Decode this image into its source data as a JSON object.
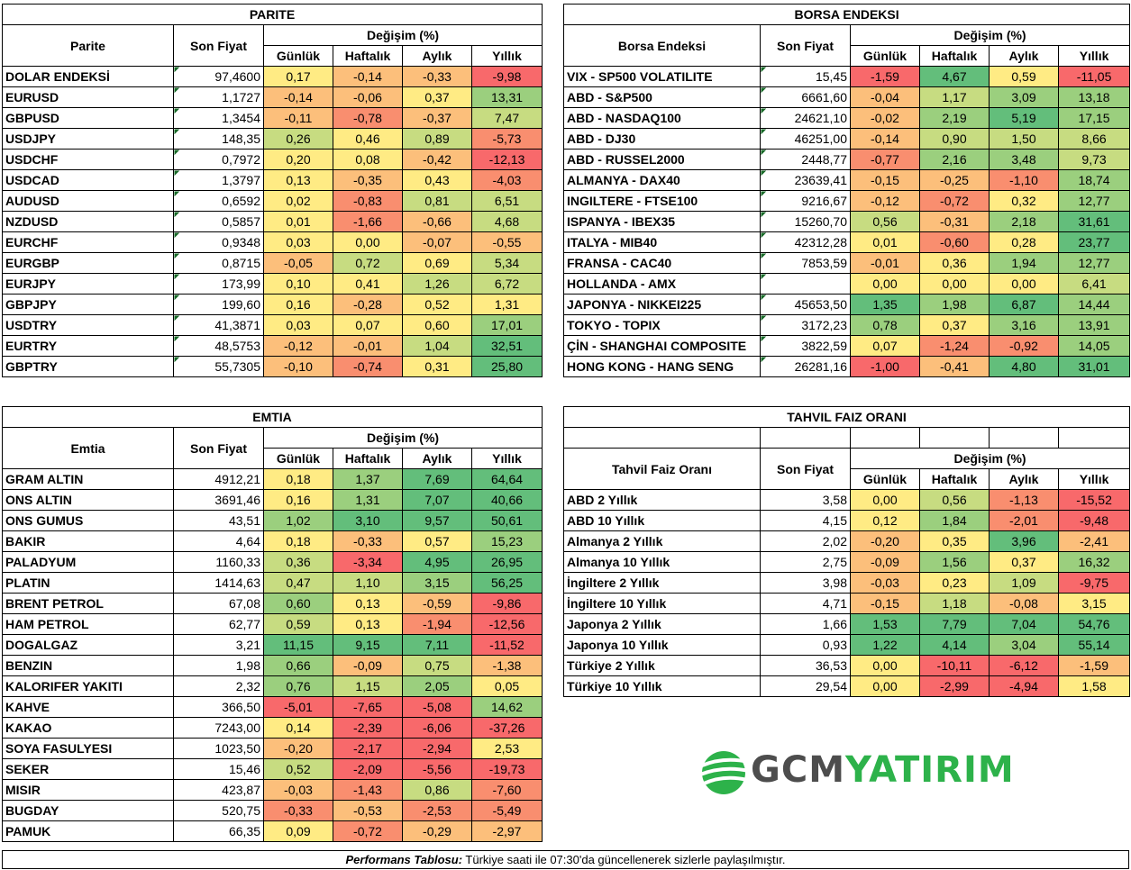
{
  "colors": {
    "deep_red": "#f8696b",
    "red": "#f98e6f",
    "orange": "#fcbf7b",
    "yellow": "#ffeb84",
    "lightgreen": "#c7dc81",
    "green": "#9bcf7e",
    "deep_green": "#63be7b"
  },
  "headers": {
    "change": "Değişim (%)",
    "daily": "Günlük",
    "weekly": "Haftalık",
    "monthly": "Aylık",
    "yearly": "Yıllık",
    "price": "Son Fiyat"
  },
  "parite": {
    "title": "PARITE",
    "col_name": "Parite",
    "rows": [
      {
        "name": "DOLAR ENDEKSİ",
        "price": "97,4600",
        "d": "0,17",
        "w": "-0,14",
        "m": "-0,33",
        "y": "-9,98"
      },
      {
        "name": "EURUSD",
        "price": "1,1727",
        "d": "-0,14",
        "w": "-0,06",
        "m": "0,37",
        "y": "13,31"
      },
      {
        "name": "GBPUSD",
        "price": "1,3454",
        "d": "-0,11",
        "w": "-0,78",
        "m": "-0,37",
        "y": "7,47"
      },
      {
        "name": "USDJPY",
        "price": "148,35",
        "d": "0,26",
        "w": "0,46",
        "m": "0,89",
        "y": "-5,73"
      },
      {
        "name": "USDCHF",
        "price": "0,7972",
        "d": "0,20",
        "w": "0,08",
        "m": "-0,42",
        "y": "-12,13"
      },
      {
        "name": "USDCAD",
        "price": "1,3797",
        "d": "0,13",
        "w": "-0,35",
        "m": "0,43",
        "y": "-4,03"
      },
      {
        "name": "AUDUSD",
        "price": "0,6592",
        "d": "0,02",
        "w": "-0,83",
        "m": "0,81",
        "y": "6,51"
      },
      {
        "name": "NZDUSD",
        "price": "0,5857",
        "d": "0,01",
        "w": "-1,66",
        "m": "-0,66",
        "y": "4,68"
      },
      {
        "name": "EURCHF",
        "price": "0,9348",
        "d": "0,03",
        "w": "0,00",
        "m": "-0,07",
        "y": "-0,55"
      },
      {
        "name": "EURGBP",
        "price": "0,8715",
        "d": "-0,05",
        "w": "0,72",
        "m": "0,69",
        "y": "5,34"
      },
      {
        "name": "EURJPY",
        "price": "173,99",
        "d": "0,10",
        "w": "0,41",
        "m": "1,26",
        "y": "6,72"
      },
      {
        "name": "GBPJPY",
        "price": "199,60",
        "d": "0,16",
        "w": "-0,28",
        "m": "0,52",
        "y": "1,31"
      },
      {
        "name": "USDTRY",
        "price": "41,3871",
        "d": "0,03",
        "w": "0,07",
        "m": "0,60",
        "y": "17,01"
      },
      {
        "name": "EURTRY",
        "price": "48,5753",
        "d": "-0,12",
        "w": "-0,01",
        "m": "1,04",
        "y": "32,51"
      },
      {
        "name": "GBPTRY",
        "price": "55,7305",
        "d": "-0,10",
        "w": "-0,74",
        "m": "0,31",
        "y": "25,80"
      }
    ]
  },
  "borsa": {
    "title": "BORSA ENDEKSI",
    "col_name": "Borsa Endeksi",
    "rows": [
      {
        "name": "VIX  - SP500 VOLATILITE",
        "price": "15,45",
        "d": "-1,59",
        "w": "4,67",
        "m": "0,59",
        "y": "-11,05"
      },
      {
        "name": "ABD - S&P500",
        "price": "6661,60",
        "d": "-0,04",
        "w": "1,17",
        "m": "3,09",
        "y": "13,18"
      },
      {
        "name": "ABD - NASDAQ100",
        "price": "24621,10",
        "d": "-0,02",
        "w": "2,19",
        "m": "5,19",
        "y": "17,15"
      },
      {
        "name": "ABD - DJ30",
        "price": "46251,00",
        "d": "-0,14",
        "w": "0,90",
        "m": "1,50",
        "y": "8,66"
      },
      {
        "name": "ABD - RUSSEL2000",
        "price": "2448,77",
        "d": "-0,77",
        "w": "2,16",
        "m": "3,48",
        "y": "9,73"
      },
      {
        "name": "ALMANYA - DAX40",
        "price": "23639,41",
        "d": "-0,15",
        "w": "-0,25",
        "m": "-1,10",
        "y": "18,74"
      },
      {
        "name": "INGILTERE - FTSE100",
        "price": "9216,67",
        "d": "-0,12",
        "w": "-0,72",
        "m": "0,32",
        "y": "12,77"
      },
      {
        "name": "ISPANYA - IBEX35",
        "price": "15260,70",
        "d": "0,56",
        "w": "-0,31",
        "m": "2,18",
        "y": "31,61"
      },
      {
        "name": "ITALYA - MIB40",
        "price": "42312,28",
        "d": "0,01",
        "w": "-0,60",
        "m": "0,28",
        "y": "23,77"
      },
      {
        "name": "FRANSA - CAC40",
        "price": "7853,59",
        "d": "-0,01",
        "w": "0,36",
        "m": "1,94",
        "y": "12,77"
      },
      {
        "name": "HOLLANDA - AMX",
        "price": "",
        "d": "0,00",
        "w": "0,00",
        "m": "0,00",
        "y": "6,41"
      },
      {
        "name": "JAPONYA - NIKKEI225",
        "price": "45653,50",
        "d": "1,35",
        "w": "1,98",
        "m": "6,87",
        "y": "14,44"
      },
      {
        "name": "TOKYO - TOPIX",
        "price": "3172,23",
        "d": "0,78",
        "w": "0,37",
        "m": "3,16",
        "y": "13,91"
      },
      {
        "name": "ÇİN - SHANGHAI COMPOSITE",
        "price": "3822,59",
        "d": "0,07",
        "w": "-1,24",
        "m": "-0,92",
        "y": "14,05"
      },
      {
        "name": "HONG KONG - HANG SENG",
        "price": "26281,16",
        "d": "-1,00",
        "w": "-0,41",
        "m": "4,80",
        "y": "31,01"
      }
    ]
  },
  "emtia": {
    "title": "EMTIA",
    "col_name": "Emtia",
    "rows": [
      {
        "name": "GRAM ALTIN",
        "price": "4912,21",
        "d": "0,18",
        "w": "1,37",
        "m": "7,69",
        "y": "64,64"
      },
      {
        "name": "ONS ALTIN",
        "price": "3691,46",
        "d": "0,16",
        "w": "1,31",
        "m": "7,07",
        "y": "40,66"
      },
      {
        "name": "ONS GUMUS",
        "price": "43,51",
        "d": "1,02",
        "w": "3,10",
        "m": "9,57",
        "y": "50,61"
      },
      {
        "name": "BAKIR",
        "price": "4,64",
        "d": "0,18",
        "w": "-0,33",
        "m": "0,57",
        "y": "15,23"
      },
      {
        "name": "PALADYUM",
        "price": "1160,33",
        "d": "0,36",
        "w": "-3,34",
        "m": "4,95",
        "y": "26,95"
      },
      {
        "name": "PLATIN",
        "price": "1414,63",
        "d": "0,47",
        "w": "1,10",
        "m": "3,15",
        "y": "56,25"
      },
      {
        "name": "BRENT PETROL",
        "price": "67,08",
        "d": "0,60",
        "w": "0,13",
        "m": "-0,59",
        "y": "-9,86"
      },
      {
        "name": "HAM PETROL",
        "price": "62,77",
        "d": "0,59",
        "w": "0,13",
        "m": "-1,94",
        "y": "-12,56"
      },
      {
        "name": "DOGALGAZ",
        "price": "3,21",
        "d": "11,15",
        "w": "9,15",
        "m": "7,11",
        "y": "-11,52"
      },
      {
        "name": "BENZIN",
        "price": "1,98",
        "d": "0,66",
        "w": "-0,09",
        "m": "0,75",
        "y": "-1,38"
      },
      {
        "name": "KALORIFER YAKITI",
        "price": "2,32",
        "d": "0,76",
        "w": "1,15",
        "m": "2,05",
        "y": "0,05"
      },
      {
        "name": "KAHVE",
        "price": "366,50",
        "d": "-5,01",
        "w": "-7,65",
        "m": "-5,08",
        "y": "14,62"
      },
      {
        "name": "KAKAO",
        "price": "7243,00",
        "d": "0,14",
        "w": "-2,39",
        "m": "-6,06",
        "y": "-37,26"
      },
      {
        "name": "SOYA FASULYESI",
        "price": "1023,50",
        "d": "-0,20",
        "w": "-2,17",
        "m": "-2,94",
        "y": "2,53"
      },
      {
        "name": "SEKER",
        "price": "15,46",
        "d": "0,52",
        "w": "-2,09",
        "m": "-5,56",
        "y": "-19,73"
      },
      {
        "name": "MISIR",
        "price": "423,87",
        "d": "-0,03",
        "w": "-1,43",
        "m": "0,86",
        "y": "-7,60"
      },
      {
        "name": "BUGDAY",
        "price": "520,75",
        "d": "-0,33",
        "w": "-0,53",
        "m": "-2,53",
        "y": "-5,49"
      },
      {
        "name": "PAMUK",
        "price": "66,35",
        "d": "0,09",
        "w": "-0,72",
        "m": "-0,29",
        "y": "-2,97"
      }
    ]
  },
  "tahvil": {
    "title": "TAHVIL FAIZ ORANI",
    "col_name": "Tahvil Faiz Oranı",
    "rows": [
      {
        "name": "ABD 2 Yıllık",
        "price": "3,58",
        "d": "0,00",
        "w": "0,56",
        "m": "-1,13",
        "y": "-15,52"
      },
      {
        "name": "ABD 10 Yıllık",
        "price": "4,15",
        "d": "0,12",
        "w": "1,84",
        "m": "-2,01",
        "y": "-9,48"
      },
      {
        "name": "Almanya 2 Yıllık",
        "price": "2,02",
        "d": "-0,20",
        "w": "0,35",
        "m": "3,96",
        "y": "-2,41"
      },
      {
        "name": "Almanya 10 Yıllık",
        "price": "2,75",
        "d": "-0,09",
        "w": "1,56",
        "m": "0,37",
        "y": "16,32"
      },
      {
        "name": "İngiltere 2 Yıllık",
        "price": "3,98",
        "d": "-0,03",
        "w": "0,23",
        "m": "1,09",
        "y": "-9,75"
      },
      {
        "name": "İngiltere 10 Yıllık",
        "price": "4,71",
        "d": "-0,15",
        "w": "1,18",
        "m": "-0,08",
        "y": "3,15"
      },
      {
        "name": "Japonya 2 Yıllık",
        "price": "1,66",
        "d": "1,53",
        "w": "7,79",
        "m": "7,04",
        "y": "54,76"
      },
      {
        "name": "Japonya 10 Yıllık",
        "price": "0,93",
        "d": "1,22",
        "w": "4,14",
        "m": "3,04",
        "y": "55,14"
      },
      {
        "name": "Türkiye 2 Yıllık",
        "price": "36,53",
        "d": "0,00",
        "w": "-10,11",
        "m": "-6,12",
        "y": "-1,59"
      },
      {
        "name": "Türkiye 10 Yıllık",
        "price": "29,54",
        "d": "0,00",
        "w": "-2,99",
        "m": "-4,94",
        "y": "1,58"
      }
    ]
  },
  "logo": {
    "part1": "GCM",
    "part2": "YATIRIM"
  },
  "footer": {
    "bold": "Performans Tablosu:",
    "text": " Türkiye saati ile 07:30'da güncellenerek sizlerle paylaşılmıştır."
  }
}
